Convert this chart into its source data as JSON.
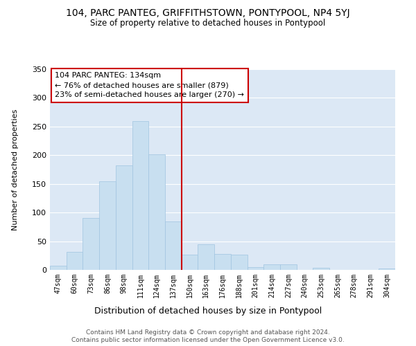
{
  "title": "104, PARC PANTEG, GRIFFITHSTOWN, PONTYPOOL, NP4 5YJ",
  "subtitle": "Size of property relative to detached houses in Pontypool",
  "xlabel": "Distribution of detached houses by size in Pontypool",
  "ylabel": "Number of detached properties",
  "bar_labels": [
    "47sqm",
    "60sqm",
    "73sqm",
    "86sqm",
    "98sqm",
    "111sqm",
    "124sqm",
    "137sqm",
    "150sqm",
    "163sqm",
    "176sqm",
    "188sqm",
    "201sqm",
    "214sqm",
    "227sqm",
    "240sqm",
    "253sqm",
    "265sqm",
    "278sqm",
    "291sqm",
    "304sqm"
  ],
  "bar_values": [
    7,
    31,
    91,
    155,
    182,
    260,
    202,
    85,
    27,
    45,
    28,
    26,
    5,
    10,
    10,
    0,
    4,
    0,
    0,
    0,
    3
  ],
  "bar_color": "#c8dff0",
  "bar_edge_color": "#a0c4e0",
  "vline_x_index": 7,
  "vline_color": "#cc0000",
  "ylim": [
    0,
    350
  ],
  "yticks": [
    0,
    50,
    100,
    150,
    200,
    250,
    300,
    350
  ],
  "annotation_title": "104 PARC PANTEG: 134sqm",
  "annotation_line1": "← 76% of detached houses are smaller (879)",
  "annotation_line2": "23% of semi-detached houses are larger (270) →",
  "annotation_box_color": "#ffffff",
  "annotation_box_edge": "#cc0000",
  "footer_line1": "Contains HM Land Registry data © Crown copyright and database right 2024.",
  "footer_line2": "Contains public sector information licensed under the Open Government Licence v3.0.",
  "background_color": "#ffffff",
  "grid_color": "#dce8f5"
}
